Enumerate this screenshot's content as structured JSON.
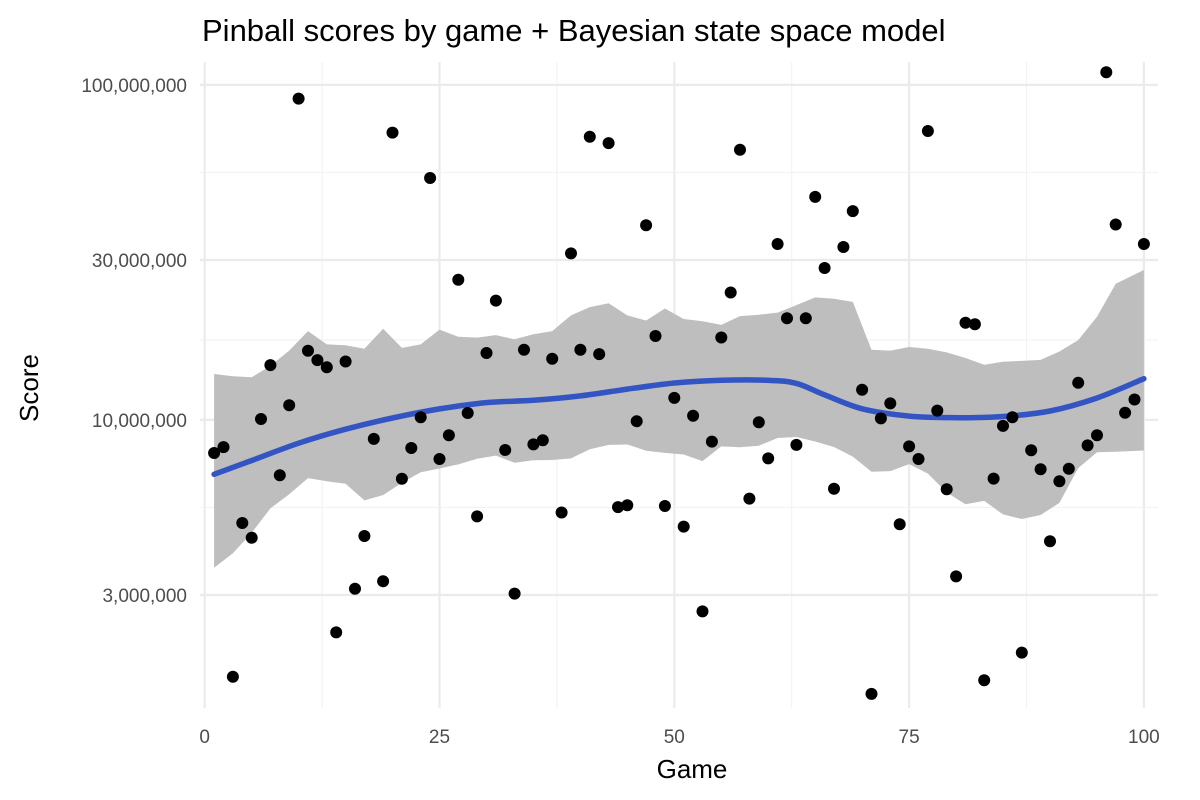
{
  "chart_data": {
    "type": "scatter",
    "title": "Pinball scores by game + Bayesian state space model",
    "xlabel": "Game",
    "ylabel": "Score",
    "x_scale": "linear",
    "y_scale": "log10",
    "xlim": [
      -0.5,
      101.5
    ],
    "ylim": [
      1380000,
      117000000
    ],
    "x_ticks": [
      0,
      25,
      50,
      75,
      100
    ],
    "x_tick_labels": [
      "0",
      "25",
      "50",
      "75",
      "100"
    ],
    "y_ticks": [
      3000000,
      10000000,
      30000000,
      100000000
    ],
    "y_tick_labels": [
      "3,000,000",
      "10,000,000",
      "30,000,000",
      "100,000,000"
    ],
    "grid": true,
    "legend": "none",
    "colors": {
      "points": "#000000",
      "trend_line": "#3355c3",
      "credible_band": "#bebebe",
      "grid": "#ebebeb"
    },
    "series": [
      {
        "type": "scatter",
        "x": [
          1,
          2,
          3,
          4,
          5,
          6,
          7,
          8,
          9,
          10,
          11,
          12,
          13,
          14,
          15,
          16,
          17,
          18,
          19,
          20,
          21,
          22,
          23,
          24,
          25,
          26,
          27,
          28,
          29,
          30,
          31,
          32,
          33,
          34,
          35,
          36,
          37,
          38,
          39,
          40,
          41,
          42,
          43,
          44,
          45,
          46,
          47,
          48,
          49,
          50,
          51,
          52,
          53,
          54,
          55,
          56,
          57,
          58,
          59,
          60,
          61,
          62,
          63,
          64,
          65,
          66,
          67,
          68,
          69,
          70,
          71,
          72,
          73,
          74,
          75,
          76,
          77,
          78,
          79,
          80,
          81,
          82,
          83,
          84,
          85,
          86,
          87,
          88,
          89,
          90,
          91,
          92,
          93,
          94,
          95,
          96,
          97,
          98,
          99,
          100
        ],
        "y": [
          7960000,
          8290000,
          1710000,
          4920000,
          4450000,
          10060000,
          14570000,
          6830000,
          11060000,
          91000000,
          16080000,
          15080000,
          14350000,
          2320000,
          14930000,
          3130000,
          4500000,
          8770000,
          3300000,
          72000000,
          6670000,
          8240000,
          10180000,
          52700000,
          7640000,
          9000000,
          26200000,
          10480000,
          5150000,
          15830000,
          22700000,
          8130000,
          3030000,
          16190000,
          8450000,
          8690000,
          15210000,
          5290000,
          31400000,
          16190000,
          70000000,
          15710000,
          67000000,
          5490000,
          5560000,
          9910000,
          38100000,
          17800000,
          5530000,
          11630000,
          4800000,
          10290000,
          2680000,
          8610000,
          17610000,
          24000000,
          64000000,
          5820000,
          9830000,
          7670000,
          33500000,
          20100000,
          8420000,
          20100000,
          46300000,
          28400000,
          6230000,
          32800000,
          42000000,
          12300000,
          1520000,
          10100000,
          11200000,
          4880000,
          8330000,
          7640000,
          72800000,
          10660000,
          6210000,
          3410000,
          19500000,
          19300000,
          1670000,
          6680000,
          9590000,
          10180000,
          2020000,
          8110000,
          7120000,
          4340000,
          6560000,
          7150000,
          12900000,
          8390000,
          9000000,
          109000000,
          38300000,
          10500000,
          11500000,
          33500000
        ]
      },
      {
        "type": "line",
        "name": "",
        "x": [
          1,
          5,
          10,
          15,
          20,
          25,
          30,
          35,
          40,
          45,
          50,
          55,
          60,
          63,
          66,
          70,
          75,
          80,
          85,
          90,
          95,
          100
        ],
        "y": [
          6880000,
          7560000,
          8520000,
          9380000,
          10130000,
          10780000,
          11260000,
          11440000,
          11790000,
          12350000,
          12880000,
          13120000,
          13120000,
          12850000,
          11880000,
          10790000,
          10260000,
          10150000,
          10230000,
          10630000,
          11620000,
          13270000
        ]
      },
      {
        "type": "band",
        "name": "",
        "x": [
          1,
          3,
          5,
          7,
          9,
          11,
          13,
          15,
          17,
          19,
          21,
          23,
          25,
          27,
          29,
          31,
          33,
          35,
          37,
          39,
          41,
          43,
          45,
          47,
          49,
          51,
          53,
          55,
          57,
          59,
          61,
          63,
          65,
          67,
          69,
          71,
          73,
          75,
          77,
          79,
          81,
          83,
          85,
          87,
          89,
          91,
          93,
          95,
          97,
          100
        ],
        "upper": [
          13700000,
          13500000,
          13400000,
          14500000,
          16100000,
          18400000,
          16800000,
          16700000,
          16300000,
          18700000,
          16400000,
          16800000,
          18600000,
          17700000,
          17600000,
          17900000,
          17400000,
          18000000,
          18400000,
          20500000,
          21700000,
          22300000,
          20500000,
          19800000,
          21500000,
          20000000,
          19700000,
          19200000,
          20400000,
          20600000,
          20900000,
          22000000,
          23200000,
          23000000,
          22500000,
          16200000,
          16100000,
          16500000,
          16300000,
          15900000,
          15300000,
          14600000,
          14900000,
          15000000,
          15100000,
          16000000,
          17300000,
          20300000,
          25500000,
          28000000
        ],
        "lower": [
          3620000,
          4000000,
          4600000,
          5440000,
          6000000,
          6700000,
          6560000,
          6450000,
          5750000,
          5960000,
          6490000,
          6980000,
          7160000,
          7360000,
          7650000,
          7820000,
          7450000,
          7580000,
          7590000,
          7670000,
          8170000,
          8420000,
          8440000,
          8090000,
          7970000,
          7880000,
          7530000,
          8330000,
          8280000,
          8370000,
          8830000,
          8890000,
          8620000,
          8300000,
          7770000,
          7000000,
          7030000,
          7380000,
          6910000,
          6070000,
          5600000,
          5730000,
          5220000,
          5060000,
          5200000,
          5650000,
          7180000,
          8000000,
          8030000,
          8100000
        ]
      }
    ]
  }
}
